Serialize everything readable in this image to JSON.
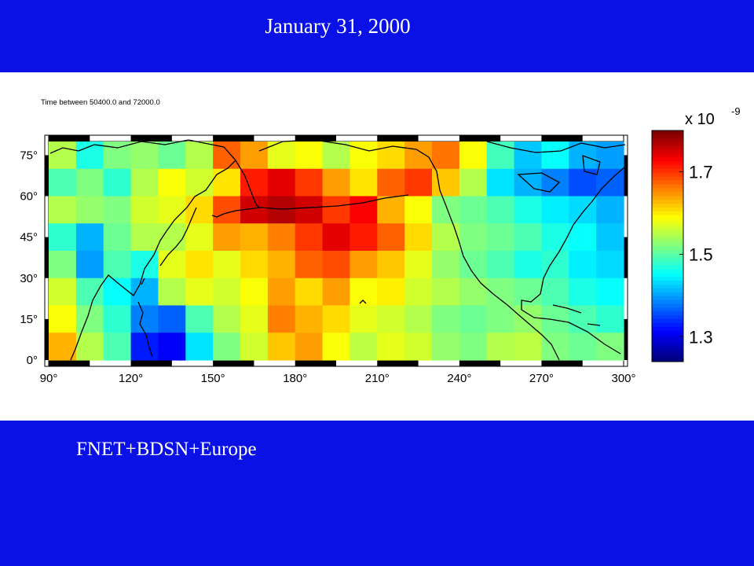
{
  "header": {
    "date": "January 31, 2000"
  },
  "footer": {
    "networks": "FNET+BDSN+Europe"
  },
  "figure": {
    "time_window": "Time between 50400.0 and 72000.0",
    "x_ticks": [
      "90°",
      "120°",
      "150°",
      "180°",
      "210°",
      "240°",
      "270°",
      "300°"
    ],
    "y_ticks": [
      "75°",
      "60°",
      "45°",
      "30°",
      "15°",
      "0°"
    ],
    "x_range": [
      90,
      300
    ],
    "y_range": [
      0,
      80
    ],
    "colorbar": {
      "multiplier": "x 10",
      "exponent": "-9",
      "ticks": [
        "1.7",
        "1.5",
        "1.3"
      ],
      "range": [
        1.24,
        1.8
      ]
    },
    "field": {
      "columns": 21,
      "rows": 8,
      "row_order": "north_to_south",
      "values": [
        [
          0.55,
          0.4,
          0.5,
          0.52,
          0.48,
          0.55,
          0.78,
          0.72,
          0.6,
          0.62,
          0.55,
          0.62,
          0.66,
          0.72,
          0.76,
          0.62,
          0.44,
          0.32,
          0.38,
          0.3,
          0.28
        ],
        [
          0.45,
          0.5,
          0.42,
          0.55,
          0.62,
          0.58,
          0.65,
          0.85,
          0.9,
          0.82,
          0.72,
          0.65,
          0.78,
          0.82,
          0.68,
          0.55,
          0.35,
          0.3,
          0.25,
          0.2,
          0.22
        ],
        [
          0.55,
          0.52,
          0.5,
          0.58,
          0.6,
          0.66,
          0.8,
          0.92,
          0.95,
          0.92,
          0.82,
          0.88,
          0.7,
          0.62,
          0.5,
          0.48,
          0.45,
          0.4,
          0.36,
          0.34,
          0.3
        ],
        [
          0.42,
          0.3,
          0.48,
          0.55,
          0.55,
          0.6,
          0.72,
          0.7,
          0.75,
          0.82,
          0.9,
          0.85,
          0.78,
          0.66,
          0.55,
          0.5,
          0.48,
          0.45,
          0.4,
          0.38,
          0.32
        ],
        [
          0.5,
          0.28,
          0.45,
          0.4,
          0.6,
          0.65,
          0.6,
          0.66,
          0.7,
          0.78,
          0.8,
          0.72,
          0.68,
          0.6,
          0.52,
          0.48,
          0.45,
          0.4,
          0.42,
          0.36,
          0.34
        ],
        [
          0.58,
          0.45,
          0.38,
          0.3,
          0.55,
          0.6,
          0.58,
          0.62,
          0.72,
          0.66,
          0.72,
          0.62,
          0.64,
          0.58,
          0.55,
          0.52,
          0.5,
          0.48,
          0.45,
          0.4,
          0.38
        ],
        [
          0.62,
          0.5,
          0.42,
          0.25,
          0.22,
          0.45,
          0.55,
          0.6,
          0.75,
          0.7,
          0.66,
          0.6,
          0.58,
          0.55,
          0.5,
          0.48,
          0.5,
          0.52,
          0.48,
          0.45,
          0.42
        ],
        [
          0.7,
          0.55,
          0.45,
          0.15,
          0.12,
          0.35,
          0.5,
          0.58,
          0.68,
          0.72,
          0.62,
          0.56,
          0.6,
          0.58,
          0.52,
          0.5,
          0.55,
          0.56,
          0.5,
          0.48,
          0.5
        ]
      ]
    }
  }
}
